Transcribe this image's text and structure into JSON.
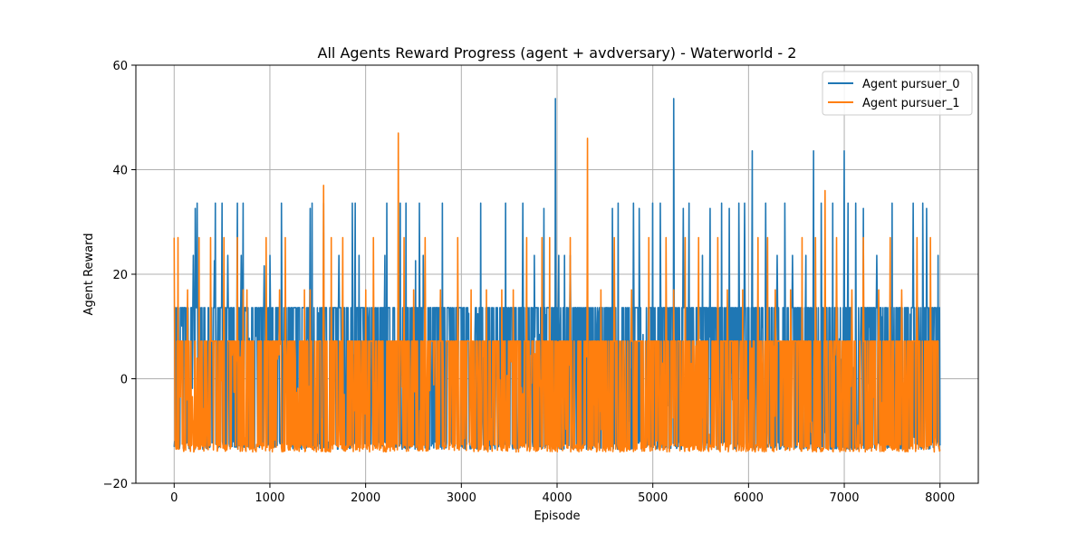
{
  "chart_data": {
    "type": "line",
    "title": "All Agents Reward Progress (agent + avdversary) - Waterworld - 2",
    "xlabel": "Episode",
    "ylabel": "Agent Reward",
    "xlim": [
      -400,
      8400
    ],
    "ylim": [
      -20,
      60
    ],
    "xticks": [
      0,
      1000,
      2000,
      3000,
      4000,
      5000,
      6000,
      7000,
      8000
    ],
    "yticks": [
      -20,
      0,
      20,
      40,
      60
    ],
    "grid": true,
    "legend_position": "top-right",
    "series": [
      {
        "name": "Agent pursuer_0",
        "color": "#1f77b4",
        "baseline": [
          -13.5,
          13.6
        ],
        "x_range": [
          0,
          8000
        ],
        "spikes": [
          {
            "x": 100,
            "y": 13.6
          },
          {
            "x": 200,
            "y": 23.6
          },
          {
            "x": 220,
            "y": 32.6
          },
          {
            "x": 240,
            "y": 33.6
          },
          {
            "x": 420,
            "y": 22.6
          },
          {
            "x": 430,
            "y": 33.6
          },
          {
            "x": 500,
            "y": 33.6
          },
          {
            "x": 560,
            "y": 23.6
          },
          {
            "x": 660,
            "y": 33.6
          },
          {
            "x": 700,
            "y": 23.6
          },
          {
            "x": 720,
            "y": 33.6
          },
          {
            "x": 940,
            "y": 21.6
          },
          {
            "x": 1000,
            "y": 23.6
          },
          {
            "x": 1120,
            "y": 33.6
          },
          {
            "x": 1420,
            "y": 32.6
          },
          {
            "x": 1440,
            "y": 33.6
          },
          {
            "x": 1560,
            "y": 33.6
          },
          {
            "x": 1720,
            "y": 23.6
          },
          {
            "x": 1860,
            "y": 33.6
          },
          {
            "x": 1890,
            "y": 33.6
          },
          {
            "x": 1930,
            "y": 23.6
          },
          {
            "x": 2200,
            "y": 23.6
          },
          {
            "x": 2220,
            "y": 33.6
          },
          {
            "x": 2360,
            "y": 33.6
          },
          {
            "x": 2420,
            "y": 33.6
          },
          {
            "x": 2520,
            "y": 22.6
          },
          {
            "x": 2560,
            "y": 33.6
          },
          {
            "x": 2600,
            "y": 23.6
          },
          {
            "x": 2800,
            "y": 33.6
          },
          {
            "x": 3200,
            "y": 33.6
          },
          {
            "x": 3460,
            "y": 33.6
          },
          {
            "x": 3640,
            "y": 33.6
          },
          {
            "x": 3760,
            "y": 23.6
          },
          {
            "x": 3860,
            "y": 32.6
          },
          {
            "x": 3980,
            "y": 53.6
          },
          {
            "x": 4020,
            "y": 23.6
          },
          {
            "x": 4080,
            "y": 23.6
          },
          {
            "x": 4140,
            "y": 23.6
          },
          {
            "x": 4580,
            "y": 32.6
          },
          {
            "x": 4640,
            "y": 33.6
          },
          {
            "x": 4800,
            "y": 33.6
          },
          {
            "x": 4860,
            "y": 32.6
          },
          {
            "x": 5000,
            "y": 33.6
          },
          {
            "x": 5080,
            "y": 33.6
          },
          {
            "x": 5220,
            "y": 53.6
          },
          {
            "x": 5320,
            "y": 32.6
          },
          {
            "x": 5380,
            "y": 33.6
          },
          {
            "x": 5520,
            "y": 23.6
          },
          {
            "x": 5600,
            "y": 32.6
          },
          {
            "x": 5720,
            "y": 33.6
          },
          {
            "x": 5800,
            "y": 32.6
          },
          {
            "x": 5900,
            "y": 33.6
          },
          {
            "x": 5960,
            "y": 33.6
          },
          {
            "x": 6040,
            "y": 43.6
          },
          {
            "x": 6180,
            "y": 33.6
          },
          {
            "x": 6300,
            "y": 23.6
          },
          {
            "x": 6380,
            "y": 33.6
          },
          {
            "x": 6460,
            "y": 23.6
          },
          {
            "x": 6600,
            "y": 23.6
          },
          {
            "x": 6680,
            "y": 43.6
          },
          {
            "x": 6760,
            "y": 33.6
          },
          {
            "x": 6880,
            "y": 33.6
          },
          {
            "x": 7000,
            "y": 43.6
          },
          {
            "x": 7040,
            "y": 33.6
          },
          {
            "x": 7120,
            "y": 33.6
          },
          {
            "x": 7200,
            "y": 32.6
          },
          {
            "x": 7340,
            "y": 23.6
          },
          {
            "x": 7500,
            "y": 33.6
          },
          {
            "x": 7720,
            "y": 33.6
          },
          {
            "x": 7820,
            "y": 33.6
          },
          {
            "x": 7860,
            "y": 32.6
          },
          {
            "x": 7980,
            "y": 23.6
          }
        ]
      },
      {
        "name": "Agent pursuer_1",
        "color": "#ff7f0e",
        "baseline": [
          -14,
          7.2
        ],
        "x_range": [
          0,
          8000
        ],
        "spikes": [
          {
            "x": 0,
            "y": 27
          },
          {
            "x": 40,
            "y": 27
          },
          {
            "x": 140,
            "y": 17
          },
          {
            "x": 260,
            "y": 27
          },
          {
            "x": 380,
            "y": 27
          },
          {
            "x": 520,
            "y": 27
          },
          {
            "x": 660,
            "y": 27
          },
          {
            "x": 720,
            "y": 17
          },
          {
            "x": 760,
            "y": 17
          },
          {
            "x": 960,
            "y": 27
          },
          {
            "x": 1100,
            "y": 17
          },
          {
            "x": 1160,
            "y": 27
          },
          {
            "x": 1360,
            "y": 17
          },
          {
            "x": 1420,
            "y": 17
          },
          {
            "x": 1560,
            "y": 37
          },
          {
            "x": 1640,
            "y": 27
          },
          {
            "x": 1760,
            "y": 27
          },
          {
            "x": 2000,
            "y": 17
          },
          {
            "x": 2080,
            "y": 27
          },
          {
            "x": 2340,
            "y": 47
          },
          {
            "x": 2400,
            "y": 27
          },
          {
            "x": 2500,
            "y": 17
          },
          {
            "x": 2620,
            "y": 27
          },
          {
            "x": 2780,
            "y": 17
          },
          {
            "x": 2960,
            "y": 27
          },
          {
            "x": 3100,
            "y": 17
          },
          {
            "x": 3260,
            "y": 17
          },
          {
            "x": 3420,
            "y": 17
          },
          {
            "x": 3540,
            "y": 17
          },
          {
            "x": 3680,
            "y": 27
          },
          {
            "x": 3840,
            "y": 27
          },
          {
            "x": 3920,
            "y": 27
          },
          {
            "x": 4140,
            "y": 27
          },
          {
            "x": 4320,
            "y": 46
          },
          {
            "x": 4460,
            "y": 17
          },
          {
            "x": 4600,
            "y": 27
          },
          {
            "x": 4780,
            "y": 17
          },
          {
            "x": 4960,
            "y": 27
          },
          {
            "x": 5140,
            "y": 27
          },
          {
            "x": 5220,
            "y": 17
          },
          {
            "x": 5340,
            "y": 27
          },
          {
            "x": 5480,
            "y": 27
          },
          {
            "x": 5680,
            "y": 27
          },
          {
            "x": 5780,
            "y": 17
          },
          {
            "x": 5940,
            "y": 17
          },
          {
            "x": 6100,
            "y": 27
          },
          {
            "x": 6200,
            "y": 27
          },
          {
            "x": 6280,
            "y": 17
          },
          {
            "x": 6440,
            "y": 17
          },
          {
            "x": 6560,
            "y": 27
          },
          {
            "x": 6700,
            "y": 27
          },
          {
            "x": 6800,
            "y": 36
          },
          {
            "x": 6920,
            "y": 27
          },
          {
            "x": 7080,
            "y": 17
          },
          {
            "x": 7200,
            "y": 27
          },
          {
            "x": 7360,
            "y": 17
          },
          {
            "x": 7480,
            "y": 27
          },
          {
            "x": 7600,
            "y": 17
          },
          {
            "x": 7760,
            "y": 27
          },
          {
            "x": 7900,
            "y": 27
          }
        ]
      }
    ]
  }
}
